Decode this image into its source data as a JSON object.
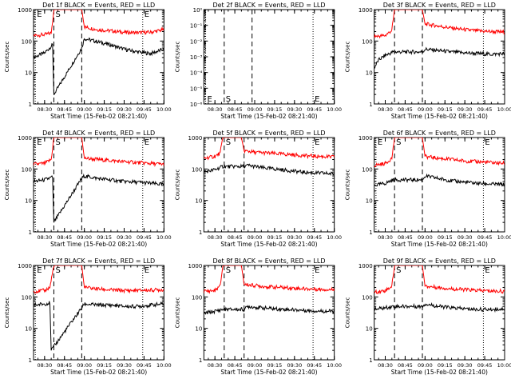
{
  "figure": {
    "background": "#ffffff",
    "axis_color": "#000000",
    "series_colors": {
      "events": "#000000",
      "lld": "#ff0000"
    }
  },
  "chart_data": [
    {
      "type": "line",
      "title": "Det 1f BLACK = Events, RED = LLD",
      "xlabel": "Start Time (15-Feb-02 08:21:40)",
      "ylabel": "Counts/sec",
      "xlim": [
        "08:21:40",
        "10:00"
      ],
      "xticks": [
        "08:30",
        "08:45",
        "09:00",
        "09:15",
        "09:30",
        "09:45",
        "10:00"
      ],
      "yscale": "log",
      "ylim": [
        1,
        1000
      ],
      "yticks": [
        "1",
        "10",
        "100",
        "1000"
      ],
      "markers": [
        {
          "label": "E",
          "time": "08:23",
          "style": "dotted"
        },
        {
          "label": "S",
          "time": "08:37",
          "style": "dashed"
        },
        {
          "label": "",
          "time": "08:58",
          "style": "dashed"
        },
        {
          "label": "E",
          "time": "09:44",
          "style": "dotted"
        }
      ],
      "series": [
        {
          "name": "Events",
          "color": "#000000",
          "x": [
            "08:21:40",
            "08:30",
            "08:36",
            "08:37",
            "08:58",
            "09:00",
            "09:10",
            "09:20",
            "09:30",
            "09:40",
            "09:50",
            "10:00"
          ],
          "values": [
            30,
            42,
            75,
            2,
            60,
            120,
            95,
            75,
            55,
            45,
            40,
            55
          ]
        },
        {
          "name": "LLD",
          "color": "#ff0000",
          "x": [
            "08:21:40",
            "08:30",
            "08:35",
            "08:37",
            "08:44",
            "08:58",
            "09:00",
            "09:10",
            "09:20",
            "09:30",
            "09:40",
            "09:50",
            "10:00"
          ],
          "values": [
            150,
            160,
            180,
            1000,
            1000,
            1000,
            280,
            230,
            210,
            190,
            185,
            190,
            230
          ]
        }
      ]
    },
    {
      "type": "line",
      "title": "Det 2f BLACK = Events, RED = LLD",
      "xlabel": "Start Time (15-Feb-02 08:21:40)",
      "ylabel": "Counts/sec",
      "xlim": [
        "08:21:40",
        "10:00"
      ],
      "xticks": [
        "08:30",
        "08:45",
        "09:00",
        "09:15",
        "09:30",
        "09:45",
        "10:00"
      ],
      "yscale": "log",
      "ylim": [
        1e-06,
        1
      ],
      "yticks": [
        "10⁻⁶",
        "10⁻⁵",
        "10⁻⁴",
        "10⁻³",
        "10⁻²",
        "10⁻¹",
        "10⁰"
      ],
      "markers": [
        {
          "label": "E",
          "time": "08:23",
          "style": "dotted"
        },
        {
          "label": "S",
          "time": "08:37",
          "style": "dashed"
        },
        {
          "label": "",
          "time": "08:58",
          "style": "dashed"
        },
        {
          "label": "E",
          "time": "09:44",
          "style": "dotted"
        }
      ],
      "marker_label_position": "bottom",
      "series": []
    },
    {
      "type": "line",
      "title": "Det 3f BLACK = Events, RED = LLD",
      "xlabel": "Start Time (15-Feb-02 08:21:40)",
      "ylabel": "Counts/sec",
      "xlim": [
        "08:21:40",
        "10:00"
      ],
      "xticks": [
        "08:30",
        "08:45",
        "09:00",
        "09:15",
        "09:30",
        "09:45",
        "10:00"
      ],
      "yscale": "log",
      "ylim": [
        1,
        1000
      ],
      "yticks": [
        "1",
        "10",
        "100",
        "1000"
      ],
      "markers": [
        {
          "label": "",
          "time": "08:37",
          "style": "dashed"
        },
        {
          "label": "",
          "time": "08:58",
          "style": "dashed"
        },
        {
          "label": "",
          "time": "09:44",
          "style": "dotted"
        }
      ],
      "series": [
        {
          "name": "Events",
          "color": "#000000",
          "x": [
            "08:21:40",
            "08:25",
            "08:30",
            "08:36",
            "08:58",
            "09:00",
            "09:10",
            "09:20",
            "09:30",
            "09:40",
            "09:50",
            "10:00"
          ],
          "values": [
            14,
            25,
            35,
            45,
            45,
            55,
            50,
            45,
            42,
            40,
            38,
            40
          ]
        },
        {
          "name": "LLD",
          "color": "#ff0000",
          "x": [
            "08:21:40",
            "08:30",
            "08:35",
            "08:37",
            "08:44",
            "08:58",
            "09:00",
            "09:10",
            "09:20",
            "09:30",
            "09:40",
            "09:50",
            "10:00"
          ],
          "values": [
            140,
            150,
            220,
            1000,
            1000,
            1000,
            350,
            300,
            260,
            230,
            210,
            200,
            190
          ]
        }
      ]
    },
    {
      "type": "line",
      "title": "Det 4f BLACK = Events, RED = LLD",
      "xlabel": "Start Time (15-Feb-02 08:21:40)",
      "ylabel": "Counts/sec",
      "xlim": [
        "08:21:40",
        "10:00"
      ],
      "xticks": [
        "08:30",
        "08:45",
        "09:00",
        "09:15",
        "09:30",
        "09:45",
        "10:00"
      ],
      "yscale": "log",
      "ylim": [
        1,
        1000
      ],
      "yticks": [
        "1",
        "10",
        "100",
        "1000"
      ],
      "markers": [
        {
          "label": "E",
          "time": "08:23",
          "style": "dotted"
        },
        {
          "label": "S",
          "time": "08:37",
          "style": "dashed"
        },
        {
          "label": "",
          "time": "08:58",
          "style": "dashed"
        },
        {
          "label": "E",
          "time": "09:44",
          "style": "dotted"
        }
      ],
      "series": [
        {
          "name": "Events",
          "color": "#000000",
          "x": [
            "08:21:40",
            "08:30",
            "08:36",
            "08:37",
            "08:58",
            "09:00",
            "09:10",
            "09:20",
            "09:30",
            "09:40",
            "09:50",
            "10:00"
          ],
          "values": [
            40,
            45,
            55,
            2,
            50,
            60,
            50,
            45,
            40,
            38,
            35,
            32
          ]
        },
        {
          "name": "LLD",
          "color": "#ff0000",
          "x": [
            "08:21:40",
            "08:30",
            "08:35",
            "08:37",
            "08:44",
            "08:58",
            "09:00",
            "09:10",
            "09:20",
            "09:30",
            "09:40",
            "09:50",
            "10:00"
          ],
          "values": [
            140,
            150,
            200,
            1000,
            1000,
            1000,
            220,
            200,
            185,
            170,
            160,
            150,
            140
          ]
        }
      ]
    },
    {
      "type": "line",
      "title": "Det 5f BLACK = Events, RED = LLD",
      "xlabel": "Start Time (15-Feb-02 08:21:40)",
      "ylabel": "Counts/sec",
      "xlim": [
        "08:21:40",
        "10:00"
      ],
      "xticks": [
        "08:30",
        "08:45",
        "09:00",
        "09:15",
        "09:30",
        "09:45",
        "10:00"
      ],
      "yscale": "log",
      "ylim": [
        1,
        1000
      ],
      "yticks": [
        "1",
        "10",
        "100",
        "1000"
      ],
      "markers": [
        {
          "label": "S",
          "time": "08:37",
          "style": "dashed"
        },
        {
          "label": "",
          "time": "08:52",
          "style": "dashed"
        },
        {
          "label": "E",
          "time": "09:44",
          "style": "dotted"
        }
      ],
      "series": [
        {
          "name": "Events",
          "color": "#000000",
          "x": [
            "08:21:40",
            "08:30",
            "08:36",
            "08:52",
            "08:55",
            "09:05",
            "09:15",
            "09:25",
            "09:35",
            "09:45",
            "09:55",
            "10:00"
          ],
          "values": [
            80,
            95,
            120,
            120,
            130,
            110,
            100,
            90,
            80,
            75,
            72,
            70
          ]
        },
        {
          "name": "LLD",
          "color": "#ff0000",
          "x": [
            "08:21:40",
            "08:30",
            "08:34",
            "08:36",
            "08:50",
            "08:52",
            "09:00",
            "09:10",
            "09:20",
            "09:30",
            "09:40",
            "09:50",
            "10:00"
          ],
          "values": [
            220,
            250,
            320,
            1000,
            1000,
            380,
            340,
            320,
            300,
            280,
            260,
            250,
            240
          ]
        }
      ]
    },
    {
      "type": "line",
      "title": "Det 6f BLACK = Events, RED = LLD",
      "xlabel": "Start Time (15-Feb-02 08:21:40)",
      "ylabel": "Counts/sec",
      "xlim": [
        "08:21:40",
        "10:00"
      ],
      "xticks": [
        "08:30",
        "08:45",
        "09:00",
        "09:15",
        "09:30",
        "09:45",
        "10:00"
      ],
      "yscale": "log",
      "ylim": [
        1,
        1000
      ],
      "yticks": [
        "1",
        "10",
        "100",
        "1000"
      ],
      "markers": [
        {
          "label": "E",
          "time": "08:23",
          "style": "dotted"
        },
        {
          "label": "S",
          "time": "08:37",
          "style": "dashed"
        },
        {
          "label": "",
          "time": "08:58",
          "style": "dashed"
        },
        {
          "label": "E",
          "time": "09:44",
          "style": "dotted"
        }
      ],
      "series": [
        {
          "name": "Events",
          "color": "#000000",
          "x": [
            "08:21:40",
            "08:30",
            "08:36",
            "08:58",
            "09:00",
            "09:10",
            "09:20",
            "09:30",
            "09:40",
            "09:50",
            "10:00"
          ],
          "values": [
            30,
            35,
            45,
            45,
            60,
            50,
            42,
            38,
            35,
            33,
            32
          ]
        },
        {
          "name": "LLD",
          "color": "#ff0000",
          "x": [
            "08:21:40",
            "08:30",
            "08:35",
            "08:37",
            "08:44",
            "08:58",
            "09:00",
            "09:10",
            "09:20",
            "09:30",
            "09:40",
            "09:50",
            "10:00"
          ],
          "values": [
            130,
            150,
            220,
            1000,
            1000,
            1000,
            250,
            220,
            200,
            180,
            170,
            160,
            150
          ]
        }
      ]
    },
    {
      "type": "line",
      "title": "Det 7f BLACK = Events, RED = LLD",
      "xlabel": "Start Time (15-Feb-02 08:21:40)",
      "ylabel": "Counts/sec",
      "xlim": [
        "08:21:40",
        "10:00"
      ],
      "xticks": [
        "08:30",
        "08:45",
        "09:00",
        "09:15",
        "09:30",
        "09:45",
        "10:00"
      ],
      "yscale": "log",
      "ylim": [
        1,
        1000
      ],
      "yticks": [
        "1",
        "10",
        "100",
        "1000"
      ],
      "markers": [
        {
          "label": "E",
          "time": "08:23",
          "style": "dotted"
        },
        {
          "label": "S",
          "time": "08:37",
          "style": "dashed"
        },
        {
          "label": "",
          "time": "08:58",
          "style": "dashed"
        },
        {
          "label": "E",
          "time": "09:44",
          "style": "dotted"
        }
      ],
      "series": [
        {
          "name": "Events",
          "color": "#000000",
          "x": [
            "08:21:40",
            "08:30",
            "08:34",
            "08:35",
            "08:58",
            "09:00",
            "09:10",
            "09:20",
            "09:30",
            "09:40",
            "09:50",
            "10:00"
          ],
          "values": [
            55,
            60,
            65,
            2,
            45,
            60,
            55,
            55,
            50,
            50,
            55,
            60
          ]
        },
        {
          "name": "LLD",
          "color": "#ff0000",
          "x": [
            "08:21:40",
            "08:30",
            "08:34",
            "08:37",
            "08:44",
            "08:58",
            "09:00",
            "09:10",
            "09:20",
            "09:30",
            "09:40",
            "09:50",
            "10:00"
          ],
          "values": [
            150,
            160,
            200,
            1000,
            1000,
            1000,
            200,
            180,
            165,
            160,
            160,
            165,
            170
          ]
        }
      ]
    },
    {
      "type": "line",
      "title": "Det 8f BLACK = Events, RED = LLD",
      "xlabel": "Start Time (15-Feb-02 08:21:40)",
      "ylabel": "Counts/sec",
      "xlim": [
        "08:21:40",
        "10:00"
      ],
      "xticks": [
        "08:30",
        "08:45",
        "09:00",
        "09:15",
        "09:30",
        "09:45",
        "10:00"
      ],
      "yscale": "log",
      "ylim": [
        1,
        1000
      ],
      "yticks": [
        "1",
        "10",
        "100",
        "1000"
      ],
      "markers": [
        {
          "label": "S",
          "time": "08:37",
          "style": "dashed"
        },
        {
          "label": "",
          "time": "08:52",
          "style": "dashed"
        },
        {
          "label": "E",
          "time": "09:44",
          "style": "dotted"
        }
      ],
      "series": [
        {
          "name": "Events",
          "color": "#000000",
          "x": [
            "08:21:40",
            "08:30",
            "08:36",
            "08:52",
            "08:55",
            "09:05",
            "09:15",
            "09:25",
            "09:35",
            "09:45",
            "09:55",
            "10:00"
          ],
          "values": [
            30,
            35,
            40,
            40,
            50,
            45,
            42,
            40,
            38,
            36,
            35,
            35
          ]
        },
        {
          "name": "LLD",
          "color": "#ff0000",
          "x": [
            "08:21:40",
            "08:30",
            "08:34",
            "08:36",
            "08:50",
            "08:52",
            "09:00",
            "09:10",
            "09:20",
            "09:30",
            "09:40",
            "09:50",
            "10:00"
          ],
          "values": [
            150,
            160,
            220,
            1000,
            1000,
            250,
            230,
            210,
            200,
            190,
            180,
            175,
            170
          ]
        }
      ]
    },
    {
      "type": "line",
      "title": "Det 9f BLACK = Events, RED = LLD",
      "xlabel": "Start Time (15-Feb-02 08:21:40)",
      "ylabel": "Counts/sec",
      "xlim": [
        "08:21:40",
        "10:00"
      ],
      "xticks": [
        "08:30",
        "08:45",
        "09:00",
        "09:15",
        "09:30",
        "09:45",
        "10:00"
      ],
      "yscale": "log",
      "ylim": [
        1,
        1000
      ],
      "yticks": [
        "1",
        "10",
        "100",
        "1000"
      ],
      "markers": [
        {
          "label": "S",
          "time": "08:37",
          "style": "dashed"
        },
        {
          "label": "",
          "time": "08:58",
          "style": "dashed"
        },
        {
          "label": "E",
          "time": "09:44",
          "style": "dotted"
        }
      ],
      "series": [
        {
          "name": "Events",
          "color": "#000000",
          "x": [
            "08:21:40",
            "08:30",
            "08:36",
            "08:58",
            "09:00",
            "09:10",
            "09:20",
            "09:30",
            "09:40",
            "09:50",
            "10:00"
          ],
          "values": [
            40,
            45,
            50,
            50,
            60,
            50,
            45,
            42,
            40,
            40,
            42
          ]
        },
        {
          "name": "LLD",
          "color": "#ff0000",
          "x": [
            "08:21:40",
            "08:30",
            "08:35",
            "08:37",
            "08:44",
            "08:58",
            "09:00",
            "09:10",
            "09:20",
            "09:30",
            "09:40",
            "09:50",
            "10:00"
          ],
          "values": [
            140,
            160,
            220,
            1000,
            1000,
            1000,
            220,
            200,
            180,
            170,
            160,
            155,
            150
          ]
        }
      ]
    }
  ]
}
